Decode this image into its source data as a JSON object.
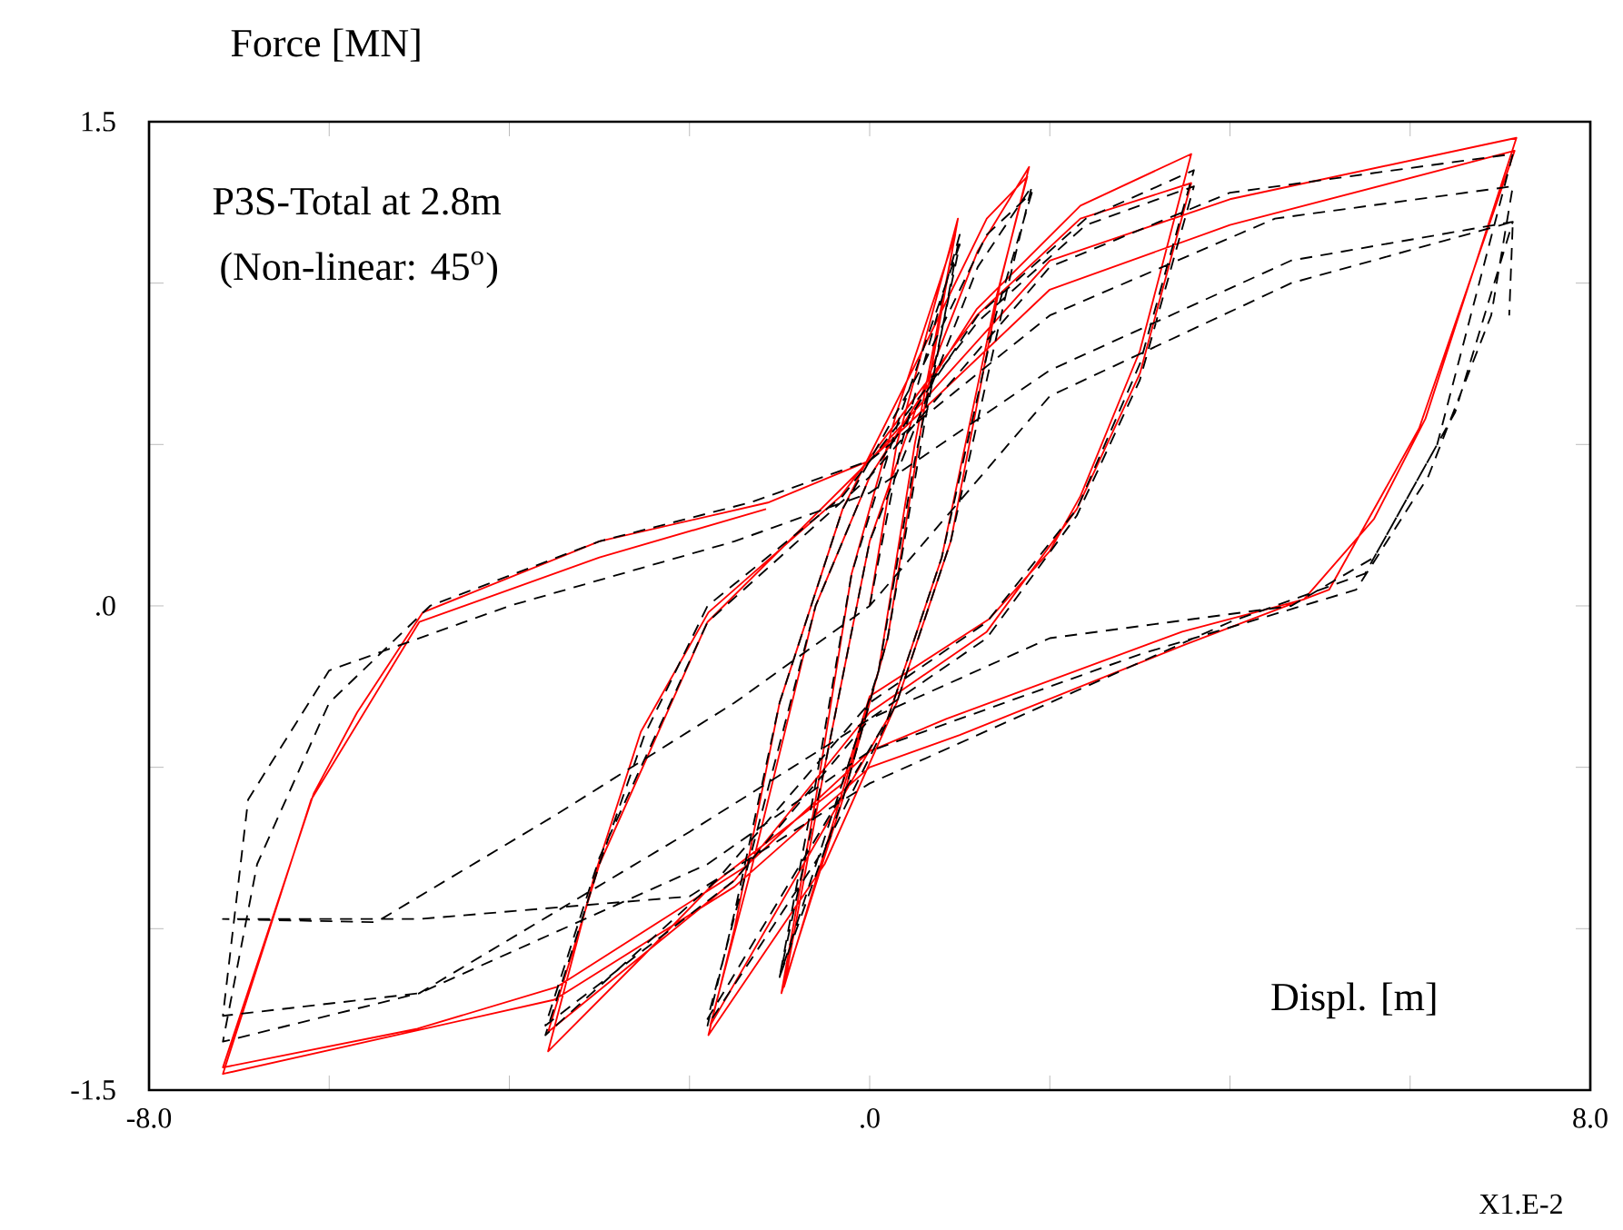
{
  "chart_data": {
    "type": "line",
    "title": "P3S-Total at 2.8m",
    "subtitle": "(Non-linear: 45$^{o}$)",
    "xlabel": "Displ. [m]",
    "ylabel": "Force [MN]",
    "annotations": [
      "X1.E-2"
    ],
    "xlim": [
      -8,
      8
    ],
    "ylim": [
      -1.5,
      1.5
    ],
    "xticks": [
      {
        "value": -8,
        "label": "-8.0"
      },
      {
        "value": -6,
        "label": null
      },
      {
        "value": -4,
        "label": null
      },
      {
        "value": -2,
        "label": null
      },
      {
        "value": 0,
        "label": ".0"
      },
      {
        "value": 2,
        "label": null
      },
      {
        "value": 4,
        "label": null
      },
      {
        "value": 6,
        "label": null
      },
      {
        "value": 8,
        "label": "8.0"
      }
    ],
    "yticks": [
      {
        "value": -1.5,
        "label": "-1.5"
      },
      {
        "value": -1,
        "label": null
      },
      {
        "value": -0.5,
        "label": null
      },
      {
        "value": 0,
        "label": ".0"
      },
      {
        "value": 0.5,
        "label": null
      },
      {
        "value": 1,
        "label": null
      },
      {
        "value": 1.5,
        "label": "1.5"
      }
    ],
    "marker": "none",
    "series": [
      {
        "color": "#ff0000",
        "line_style": "solid",
        "x": [
          0,
          0.3,
          0.98,
          0.6,
          0.2,
          -0.3,
          -0.98,
          -0.6,
          -0.2,
          0.3,
          0.95,
          0.5,
          0.1,
          -0.95,
          -0.5,
          0,
          0.5,
          1.2,
          1.77,
          1.45,
          0.9,
          0.3,
          -0.5,
          -1.79,
          -1.5,
          -1.0,
          -0.3,
          0.6,
          1.3,
          1.75,
          1.4,
          0.8,
          0.2,
          -1.77,
          -1.3,
          -0.6,
          0,
          1.19,
          2.34,
          3.57,
          3.0,
          2.34,
          2.0,
          1.33,
          0,
          -0.3,
          -1.73,
          -2.5,
          -3.57,
          -3.06,
          -2.54,
          -1.79,
          -0.32,
          1.19,
          2.34,
          3.57,
          3.0,
          2.3,
          1.3,
          0,
          -1.5,
          -3.57,
          -3.0,
          -1.8,
          0,
          2.0,
          4.0,
          7.18,
          6.17,
          5.6,
          4.82,
          3.47,
          0.85,
          0,
          -1.39,
          -3.47,
          -5.02,
          -7.18,
          -6.17,
          -5.69,
          -4.96,
          -3.0,
          -1.13,
          0,
          2.0,
          4.0,
          7.16,
          6.1,
          5.1,
          3.5,
          1.0,
          0,
          -1.5,
          -3.5,
          -7.18,
          -6.2,
          -5.0,
          -3.0,
          -1.15
        ],
        "values": [
          0,
          0.5,
          1.2,
          0.6,
          -0.1,
          -0.6,
          -1.2,
          -0.6,
          0.1,
          0.6,
          1.15,
          0.5,
          -0.2,
          -1.18,
          -0.5,
          0.2,
          0.6,
          1.1,
          1.36,
          1.0,
          0.2,
          -0.3,
          -0.8,
          -1.33,
          -1.0,
          -0.3,
          0.3,
          0.8,
          1.2,
          1.33,
          0.95,
          0.15,
          -0.35,
          -1.3,
          -0.8,
          0,
          0.4,
          0.92,
          1.24,
          1.4,
          0.79,
          0.34,
          0.17,
          -0.04,
          -0.28,
          -0.55,
          -0.86,
          -1.08,
          -1.38,
          -0.84,
          -0.39,
          -0.02,
          0.34,
          0.9,
          1.2,
          1.31,
          0.72,
          0.3,
          -0.08,
          -0.33,
          -0.85,
          -1.32,
          -0.8,
          -0.05,
          0.45,
          1.07,
          1.26,
          1.45,
          0.58,
          0.27,
          0.02,
          -0.08,
          -0.35,
          -0.45,
          -0.81,
          -1.18,
          -1.31,
          -1.43,
          -0.58,
          -0.33,
          -0.02,
          0.2,
          0.32,
          0.45,
          0.98,
          1.18,
          1.41,
          0.55,
          0.05,
          -0.12,
          -0.4,
          -0.5,
          -0.87,
          -1.22,
          -1.45,
          -0.6,
          -0.05,
          0.15,
          0.3
        ]
      },
      {
        "color": "#000000",
        "line_style": "dashed",
        "x": [
          0,
          0.35,
          1.0,
          0.6,
          0.2,
          -0.3,
          -1.0,
          -0.6,
          -0.2,
          0.35,
          1.0,
          0.5,
          0.1,
          -1.0,
          -0.5,
          0,
          0.5,
          1.2,
          1.8,
          1.5,
          0.9,
          0.3,
          -0.5,
          -1.8,
          -1.5,
          -1.0,
          -0.3,
          0.6,
          1.3,
          1.8,
          1.4,
          0.8,
          0.2,
          -1.8,
          -1.3,
          -0.6,
          0,
          1.2,
          2.4,
          3.6,
          3.0,
          2.3,
          1.3,
          0,
          -1.7,
          -3.6,
          -3.0,
          -2.5,
          -1.8,
          -0.3,
          1.2,
          2.4,
          3.6,
          3.0,
          2.3,
          1.3,
          0,
          -1.5,
          -3.6,
          -3.0,
          -1.8,
          0,
          2.0,
          4.0,
          7.14,
          6.3,
          5.6,
          4.68,
          2.0,
          0,
          -2.0,
          -5.0,
          -7.18,
          -6.8,
          -6.0,
          -4.88,
          -3.0,
          -1.33,
          0,
          2.0,
          4.5,
          7.14,
          6.9,
          6.2,
          5.4,
          3.0,
          0,
          -1.8,
          -5.0,
          -7.18,
          -6.9,
          -6.0,
          -4.0,
          -1.5,
          0,
          2.0,
          4.68,
          7.14,
          6.5,
          5.5,
          4.0,
          0,
          -2.0,
          -5.0,
          -7.18,
          -5.48,
          -3.5,
          -1.5,
          0,
          2.0,
          4.68,
          7.14,
          7.1
        ],
        "values": [
          0,
          0.5,
          1.15,
          0.55,
          -0.1,
          -0.6,
          -1.15,
          -0.55,
          0.1,
          0.6,
          1.12,
          0.45,
          -0.2,
          -1.15,
          -0.5,
          0.2,
          0.55,
          1.05,
          1.3,
          0.95,
          0.2,
          -0.3,
          -0.75,
          -1.3,
          -0.95,
          -0.3,
          0.3,
          0.75,
          1.15,
          1.28,
          0.9,
          0.15,
          -0.35,
          -1.28,
          -0.75,
          0,
          0.4,
          0.9,
          1.2,
          1.35,
          0.75,
          0.3,
          -0.05,
          -0.3,
          -0.85,
          -1.33,
          -0.8,
          -0.4,
          0,
          0.34,
          0.88,
          1.18,
          1.3,
          0.7,
          0.28,
          -0.1,
          -0.35,
          -0.85,
          -1.3,
          -0.78,
          -0.05,
          0.4,
          1.05,
          1.28,
          1.4,
          0.5,
          0.15,
          0,
          -0.1,
          -0.35,
          -0.7,
          -1.2,
          -1.35,
          -0.8,
          -0.3,
          0,
          0.2,
          0.32,
          0.45,
          0.9,
          1.2,
          1.3,
          0.9,
          0.4,
          0.05,
          -0.15,
          -0.45,
          -0.8,
          -1.2,
          -1.27,
          -0.6,
          -0.2,
          0.0,
          0.2,
          0.35,
          0.73,
          1.07,
          1.19,
          0.6,
          0.1,
          -0.05,
          -0.55,
          -0.9,
          -0.97,
          -0.97,
          -0.98,
          -0.65,
          -0.3,
          0,
          0.65,
          1.0,
          1.19,
          0.9
        ]
      }
    ]
  }
}
